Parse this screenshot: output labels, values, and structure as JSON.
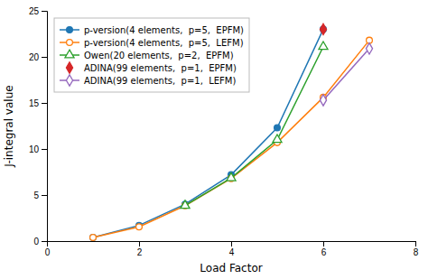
{
  "chart_data": {
    "type": "line",
    "xlabel": "Load Factor",
    "ylabel": "J-integral value",
    "series": [
      {
        "name": "p-version(4 elements,  p=5,  EPFM)",
        "x": [
          1,
          2,
          3,
          4,
          5,
          6
        ],
        "values": [
          0.4,
          1.7,
          4.0,
          7.2,
          12.3,
          23.0
        ],
        "marker": "circle",
        "line_style": "solid"
      },
      {
        "name": "p-version(4 elements,  p=5,  LEFM)",
        "x": [
          1,
          2,
          3,
          4,
          5,
          6,
          7
        ],
        "values": [
          0.4,
          1.55,
          3.85,
          6.8,
          10.7,
          15.6,
          21.8
        ],
        "marker": "circle-open",
        "line_style": "solid"
      },
      {
        "name": "Owen(20 elements,  p=2,  EPFM)",
        "x": [
          3,
          4,
          5,
          6
        ],
        "values": [
          3.85,
          6.85,
          11.0,
          21.1
        ],
        "marker": "triangle-open",
        "line_style": "solid"
      },
      {
        "name": "ADINA(99 elements,  p=1,  EPFM)",
        "x": [
          6
        ],
        "values": [
          23.0
        ],
        "marker": "diamond",
        "line_style": "none"
      },
      {
        "name": "ADINA(99 elements,  p=1,  LEFM)",
        "x": [
          6,
          7
        ],
        "values": [
          15.3,
          20.9
        ],
        "marker": "diamond-open",
        "line_style": "solid"
      }
    ],
    "xlim": [
      0,
      8
    ],
    "ylim": [
      0,
      25
    ],
    "xticks": [
      0,
      2,
      4,
      6,
      8
    ],
    "yticks": [
      0,
      5,
      10,
      15,
      20,
      25
    ],
    "legend": "upper-left"
  }
}
